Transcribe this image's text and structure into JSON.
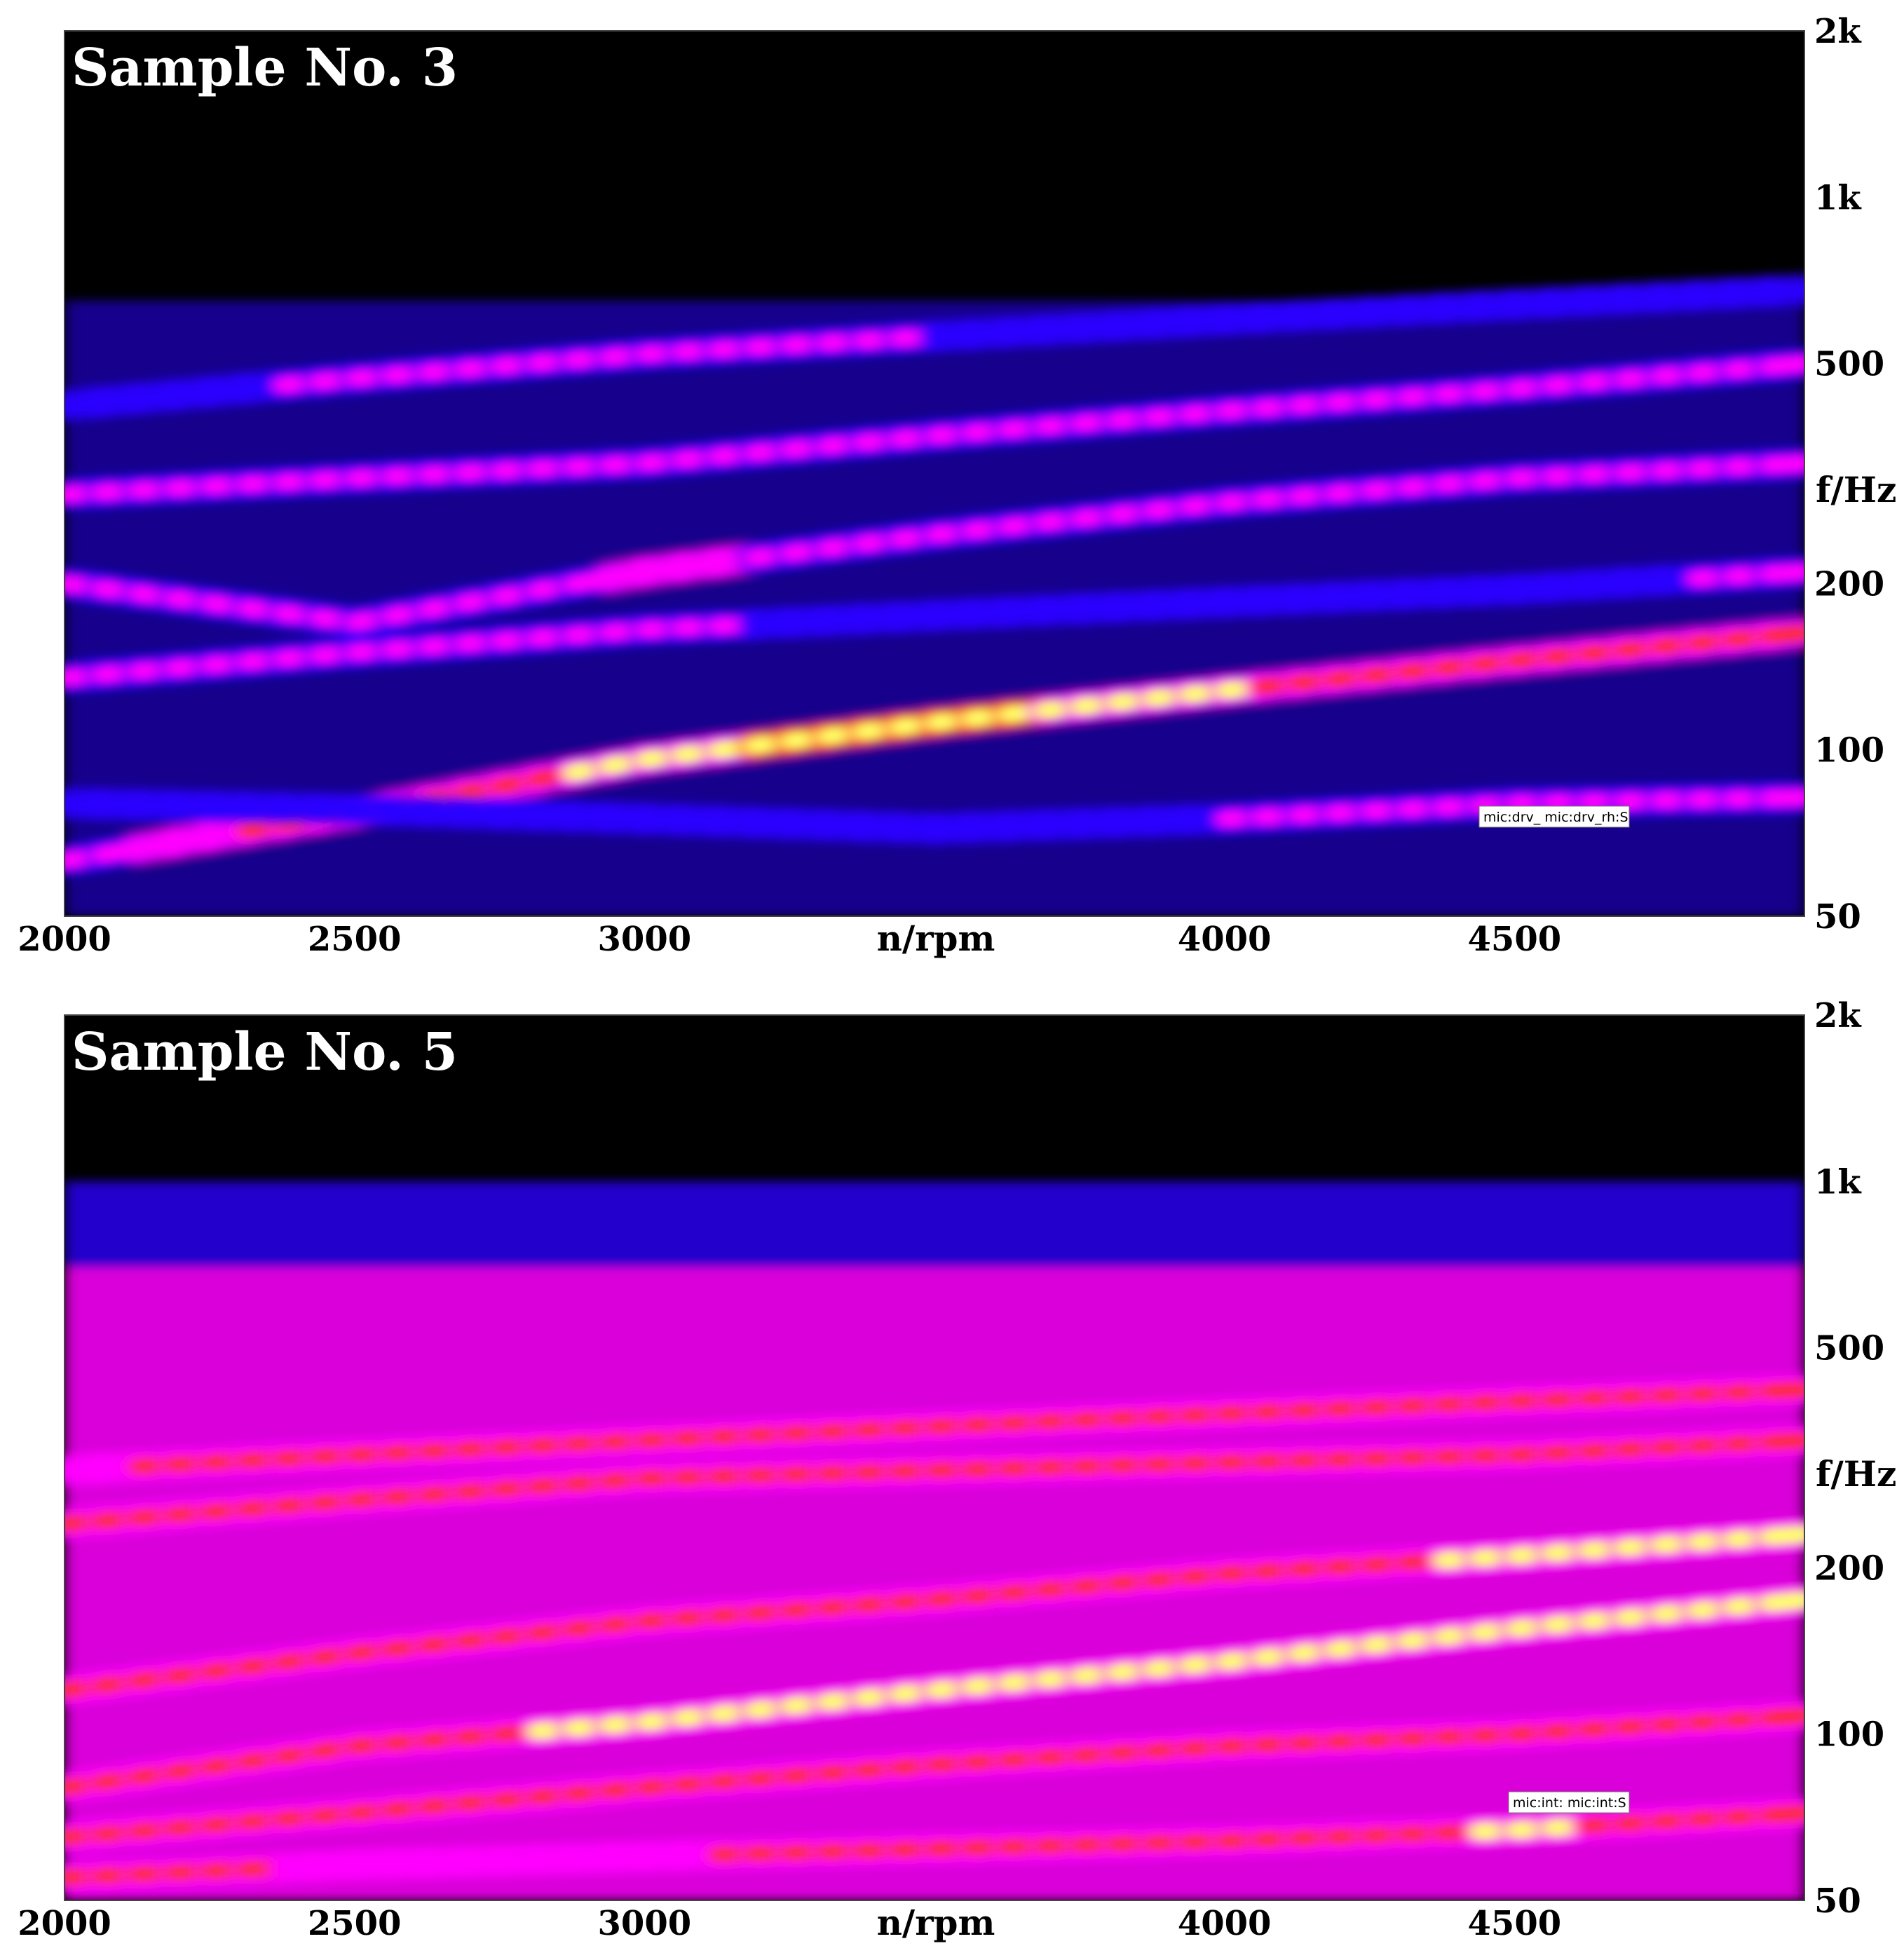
{
  "chart_data": [
    {
      "type": "heatmap",
      "title": "Sample No. 3",
      "xlabel": "n/rpm",
      "ylabel": "f/Hz",
      "xlim": [
        2000,
        5000
      ],
      "ylim": [
        50,
        2000
      ],
      "yscale": "log",
      "x_ticks": [
        {
          "value": 2000,
          "label": "2000"
        },
        {
          "value": 2500,
          "label": "2500"
        },
        {
          "value": 3000,
          "label": "3000"
        },
        {
          "value": 4000,
          "label": "4000"
        },
        {
          "value": 4500,
          "label": "4500"
        }
      ],
      "y_ticks": [
        {
          "value": 2000,
          "label": "2k"
        },
        {
          "value": 1000,
          "label": "1k"
        },
        {
          "value": 500,
          "label": "500"
        },
        {
          "value": 200,
          "label": "200"
        },
        {
          "value": 100,
          "label": "100"
        },
        {
          "value": 50,
          "label": "50"
        }
      ],
      "legend_label": "mic:drv_ mic:drv_rh:S",
      "colors": {
        "background": "#000000",
        "low": "#2a00ff",
        "mid": "#ff00ff",
        "high": "#ff2a2a",
        "peak": "#ffff66"
      },
      "bands": [
        {
          "name": "order-band-1",
          "x": [
            2000,
            2500,
            3000,
            3500,
            4000,
            4500,
            5000
          ],
          "f": [
            63,
            77,
            96,
            112,
            128,
            145,
            163
          ],
          "intensity": [
            0.6,
            0.7,
            0.88,
            0.95,
            0.85,
            0.75,
            0.72
          ]
        },
        {
          "name": "order-band-2",
          "x": [
            2000,
            2500,
            3000,
            3500,
            4000,
            4500,
            5000
          ],
          "f": [
            200,
            170,
            210,
            245,
            280,
            310,
            330
          ],
          "intensity": [
            0.55,
            0.5,
            0.65,
            0.6,
            0.55,
            0.55,
            0.6
          ]
        },
        {
          "name": "order-band-3",
          "x": [
            2000,
            2500,
            3000,
            3500,
            4000,
            4500,
            5000
          ],
          "f": [
            135,
            150,
            165,
            175,
            185,
            195,
            210
          ],
          "intensity": [
            0.45,
            0.45,
            0.4,
            0.35,
            0.35,
            0.35,
            0.4
          ]
        },
        {
          "name": "order-band-4",
          "x": [
            2000,
            2500,
            3000,
            3500,
            4000,
            4500,
            5000
          ],
          "f": [
            290,
            310,
            330,
            370,
            410,
            450,
            500
          ],
          "intensity": [
            0.5,
            0.48,
            0.5,
            0.45,
            0.45,
            0.48,
            0.55
          ]
        },
        {
          "name": "order-band-5",
          "x": [
            2000,
            2500,
            3000,
            3500,
            4000,
            4500,
            5000
          ],
          "f": [
            420,
            470,
            520,
            560,
            600,
            640,
            680
          ],
          "intensity": [
            0.3,
            0.4,
            0.45,
            0.38,
            0.35,
            0.3,
            0.28
          ]
        },
        {
          "name": "order-band-6",
          "x": [
            2000,
            2500,
            3000,
            3500,
            4000,
            4500,
            5000
          ],
          "f": [
            80,
            78,
            75,
            72,
            75,
            80,
            82
          ],
          "intensity": [
            0.35,
            0.3,
            0.32,
            0.3,
            0.38,
            0.42,
            0.45
          ]
        }
      ]
    },
    {
      "type": "heatmap",
      "title": "Sample No. 5",
      "xlabel": "n/rpm",
      "ylabel": "f/Hz",
      "xlim": [
        2000,
        5000
      ],
      "ylim": [
        50,
        2000
      ],
      "yscale": "log",
      "x_ticks": [
        {
          "value": 2000,
          "label": "2000"
        },
        {
          "value": 2500,
          "label": "2500"
        },
        {
          "value": 3000,
          "label": "3000"
        },
        {
          "value": 4000,
          "label": "4000"
        },
        {
          "value": 4500,
          "label": "4500"
        }
      ],
      "y_ticks": [
        {
          "value": 2000,
          "label": "2k"
        },
        {
          "value": 1000,
          "label": "1k"
        },
        {
          "value": 500,
          "label": "500"
        },
        {
          "value": 200,
          "label": "200"
        },
        {
          "value": 100,
          "label": "100"
        },
        {
          "value": 50,
          "label": "50"
        }
      ],
      "legend_label": "mic:int: mic:int:S",
      "colors": {
        "background": "#000000",
        "low": "#2a00ff",
        "mid": "#ff00ff",
        "high": "#ff2a2a",
        "peak": "#ffff66"
      },
      "bands": [
        {
          "name": "order-band-1",
          "x": [
            2000,
            2500,
            3000,
            3500,
            4000,
            4500,
            5000
          ],
          "f": [
            80,
            95,
            105,
            120,
            135,
            155,
            175
          ],
          "intensity": [
            0.8,
            0.82,
            0.85,
            0.88,
            0.9,
            0.9,
            0.88
          ]
        },
        {
          "name": "order-band-2",
          "x": [
            2000,
            2500,
            3000,
            3500,
            4000,
            4500,
            5000
          ],
          "f": [
            120,
            140,
            160,
            175,
            195,
            210,
            230
          ],
          "intensity": [
            0.82,
            0.8,
            0.7,
            0.75,
            0.8,
            0.85,
            0.85
          ]
        },
        {
          "name": "order-band-3",
          "x": [
            2000,
            2500,
            3000,
            3500,
            4000,
            4500,
            5000
          ],
          "f": [
            240,
            265,
            290,
            300,
            310,
            320,
            340
          ],
          "intensity": [
            0.7,
            0.72,
            0.75,
            0.72,
            0.72,
            0.75,
            0.8
          ]
        },
        {
          "name": "order-band-4",
          "x": [
            2000,
            2500,
            3000,
            3500,
            4000,
            4500,
            5000
          ],
          "f": [
            300,
            320,
            340,
            360,
            380,
            400,
            420
          ],
          "intensity": [
            0.65,
            0.7,
            0.72,
            0.72,
            0.75,
            0.8,
            0.82
          ]
        },
        {
          "name": "order-band-5",
          "x": [
            2000,
            2500,
            3000,
            3500,
            4000,
            4500,
            5000
          ],
          "f": [
            55,
            58,
            60,
            62,
            64,
            67,
            72
          ],
          "intensity": [
            0.7,
            0.65,
            0.65,
            0.7,
            0.75,
            0.85,
            0.8
          ]
        },
        {
          "name": "order-band-6",
          "x": [
            2000,
            2500,
            3000,
            3500,
            4000,
            4500,
            5000
          ],
          "f": [
            65,
            72,
            80,
            88,
            95,
            100,
            108
          ],
          "intensity": [
            0.72,
            0.75,
            0.7,
            0.7,
            0.68,
            0.7,
            0.72
          ]
        }
      ]
    }
  ]
}
